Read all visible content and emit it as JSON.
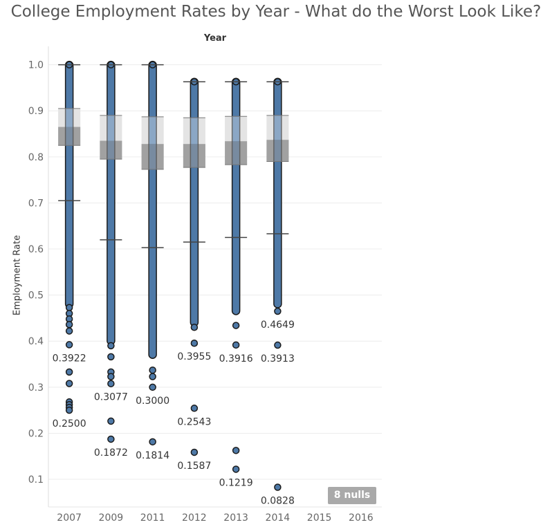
{
  "title": "College Employment Rates by Year - What do the Worst Look Like?",
  "column_header": "Year",
  "nulls_badge": "8 nulls",
  "chart_data": {
    "type": "scatter",
    "title": "College Employment Rates by Year - What do the Worst Look Like?",
    "xlabel": "Year",
    "ylabel": "Employment Rate",
    "categories": [
      "2007",
      "2009",
      "2011",
      "2012",
      "2013",
      "2014",
      "2015",
      "2016"
    ],
    "ylim": [
      0.04,
      1.04
    ],
    "yticks": [
      0.1,
      0.2,
      0.3,
      0.4,
      0.5,
      0.6,
      0.7,
      0.8,
      0.9,
      1.0
    ],
    "grid": true,
    "point_color": "#4e79a7",
    "boxplots": [
      {
        "category": "2007",
        "whisker_low": 0.705,
        "q1": 0.825,
        "median": 0.865,
        "q3": 0.905,
        "whisker_high": 1.0
      },
      {
        "category": "2009",
        "whisker_low": 0.62,
        "q1": 0.795,
        "median": 0.835,
        "q3": 0.89,
        "whisker_high": 1.0
      },
      {
        "category": "2011",
        "whisker_low": 0.603,
        "q1": 0.773,
        "median": 0.828,
        "q3": 0.887,
        "whisker_high": 1.0
      },
      {
        "category": "2012",
        "whisker_low": 0.615,
        "q1": 0.777,
        "median": 0.828,
        "q3": 0.885,
        "whisker_high": 0.963
      },
      {
        "category": "2013",
        "whisker_low": 0.625,
        "q1": 0.783,
        "median": 0.834,
        "q3": 0.888,
        "whisker_high": 0.963
      },
      {
        "category": "2014",
        "whisker_low": 0.633,
        "q1": 0.79,
        "median": 0.837,
        "q3": 0.89,
        "whisker_high": 0.963
      }
    ],
    "series": [
      {
        "category": "2007",
        "dense_range": [
          0.48,
          1.0
        ],
        "points": [
          0.4728,
          0.46,
          0.448,
          0.436,
          0.422,
          0.3922,
          0.333,
          0.308,
          0.268,
          0.262,
          0.256,
          0.25
        ]
      },
      {
        "category": "2009",
        "dense_range": [
          0.4,
          1.0
        ],
        "points": [
          0.39,
          0.366,
          0.333,
          0.323,
          0.3077,
          0.2263,
          0.1872
        ]
      },
      {
        "category": "2011",
        "dense_range": [
          0.37,
          1.0
        ],
        "points": [
          0.337,
          0.323,
          0.3,
          0.1814
        ]
      },
      {
        "category": "2012",
        "dense_range": [
          0.44,
          0.963
        ],
        "points": [
          0.43,
          0.3955,
          0.2543,
          0.1587
        ]
      },
      {
        "category": "2013",
        "dense_range": [
          0.465,
          0.963
        ],
        "points": [
          0.434,
          0.3916,
          0.1626,
          0.1219
        ]
      },
      {
        "category": "2014",
        "dense_range": [
          0.48,
          0.963
        ],
        "points": [
          0.4649,
          0.3913,
          0.0828
        ]
      }
    ],
    "data_labels": [
      {
        "category": "2007",
        "value": 0.3922,
        "text": "0.3922"
      },
      {
        "category": "2007",
        "value": 0.25,
        "text": "0.2500"
      },
      {
        "category": "2009",
        "value": 0.3077,
        "text": "0.3077"
      },
      {
        "category": "2009",
        "value": 0.1872,
        "text": "0.1872"
      },
      {
        "category": "2011",
        "value": 0.3,
        "text": "0.3000"
      },
      {
        "category": "2011",
        "value": 0.1814,
        "text": "0.1814"
      },
      {
        "category": "2012",
        "value": 0.3955,
        "text": "0.3955"
      },
      {
        "category": "2012",
        "value": 0.2543,
        "text": "0.2543"
      },
      {
        "category": "2012",
        "value": 0.1587,
        "text": "0.1587"
      },
      {
        "category": "2013",
        "value": 0.3916,
        "text": "0.3916"
      },
      {
        "category": "2013",
        "value": 0.1219,
        "text": "0.1219"
      },
      {
        "category": "2014",
        "value": 0.4649,
        "text": "0.4649"
      },
      {
        "category": "2014",
        "value": 0.3913,
        "text": "0.3913"
      },
      {
        "category": "2014",
        "value": 0.0828,
        "text": "0.0828"
      }
    ]
  }
}
